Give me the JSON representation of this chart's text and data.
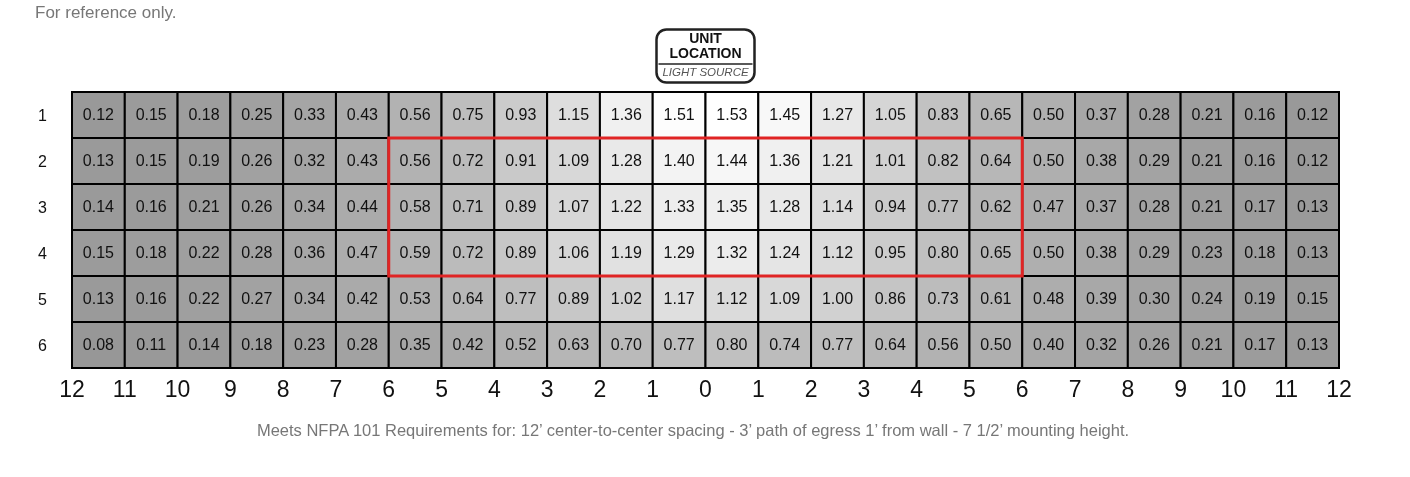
{
  "chart_data": {
    "type": "heatmap",
    "categories": [
      null,
      null,
      null,
      null,
      null,
      null,
      null,
      null,
      null,
      null,
      null,
      null,
      null,
      null,
      null,
      null,
      null,
      null,
      null,
      null,
      null,
      null,
      null,
      null
    ],
    "y_categories": [
      "1",
      "2",
      "3",
      "4",
      "5",
      "6"
    ],
    "cells": [
      [
        0.12,
        0.15,
        0.18,
        0.25,
        0.33,
        0.43,
        0.56,
        0.75,
        0.93,
        1.15,
        1.36,
        1.51,
        1.53,
        1.45,
        1.27,
        1.05,
        0.83,
        0.65,
        0.5,
        0.37,
        0.28,
        0.21,
        0.16,
        0.12
      ],
      [
        0.13,
        0.15,
        0.19,
        0.26,
        0.32,
        0.43,
        0.56,
        0.72,
        0.91,
        1.09,
        1.28,
        1.4,
        1.44,
        1.36,
        1.21,
        1.01,
        0.82,
        0.64,
        0.5,
        0.38,
        0.29,
        0.21,
        0.16,
        0.12
      ],
      [
        0.14,
        0.16,
        0.21,
        0.26,
        0.34,
        0.44,
        0.58,
        0.71,
        0.89,
        1.07,
        1.22,
        1.33,
        1.35,
        1.28,
        1.14,
        0.94,
        0.77,
        0.62,
        0.47,
        0.37,
        0.28,
        0.21,
        0.17,
        0.13
      ],
      [
        0.15,
        0.18,
        0.22,
        0.28,
        0.36,
        0.47,
        0.59,
        0.72,
        0.89,
        1.06,
        1.19,
        1.29,
        1.32,
        1.24,
        1.12,
        0.95,
        0.8,
        0.65,
        0.5,
        0.38,
        0.29,
        0.23,
        0.18,
        0.13
      ],
      [
        0.13,
        0.16,
        0.22,
        0.27,
        0.34,
        0.42,
        0.53,
        0.64,
        0.77,
        0.89,
        1.02,
        1.17,
        1.12,
        1.09,
        1.0,
        0.86,
        0.73,
        0.61,
        0.48,
        0.39,
        0.3,
        0.24,
        0.19,
        0.15
      ],
      [
        0.08,
        0.11,
        0.14,
        0.18,
        0.23,
        0.28,
        0.35,
        0.42,
        0.52,
        0.63,
        0.7,
        0.77,
        0.8,
        0.74,
        0.77,
        0.64,
        0.56,
        0.5,
        0.4,
        0.32,
        0.26,
        0.21,
        0.17,
        0.13
      ]
    ],
    "cell_labels": [
      [
        "0.12",
        "0.15",
        "0.18",
        "0.25",
        "0.33",
        "0.43",
        "0.56",
        "0.75",
        "0.93",
        "1.15",
        "1.36",
        "1.51",
        "1.53",
        "1.45",
        "1.27",
        "1.05",
        "0.83",
        "0.65",
        "0.50",
        "0.37",
        "0.28",
        "0.21",
        "0.16",
        "0.12"
      ],
      [
        "0.13",
        "0.15",
        "0.19",
        "0.26",
        "0.32",
        "0.43",
        "0.56",
        "0.72",
        "0.91",
        "1.09",
        "1.28",
        "1.40",
        "1.44",
        "1.36",
        "1.21",
        "1.01",
        "0.82",
        "0.64",
        "0.50",
        "0.38",
        "0.29",
        "0.21",
        "0.16",
        "0.12"
      ],
      [
        "0.14",
        "0.16",
        "0.21",
        "0.26",
        "0.34",
        "0.44",
        "0.58",
        "0.71",
        "0.89",
        "1.07",
        "1.22",
        "1.33",
        "1.35",
        "1.28",
        "1.14",
        "0.94",
        "0.77",
        "0.62",
        "0.47",
        "0.37",
        "0.28",
        "0.21",
        "0.17",
        "0.13"
      ],
      [
        "0.15",
        "0.18",
        "0.22",
        "0.28",
        "0.36",
        "0.47",
        "0.59",
        "0.72",
        "0.89",
        "1.06",
        "1.19",
        "1.29",
        "1.32",
        "1.24",
        "1.12",
        "0.95",
        "0.80",
        "0.65",
        "0.50",
        "0.38",
        "0.29",
        "0.23",
        "0.18",
        "0.13"
      ],
      [
        "0.13",
        "0.16",
        "0.22",
        "0.27",
        "0.34",
        "0.42",
        "0.53",
        "0.64",
        "0.77",
        "0.89",
        "1.02",
        "1.17",
        "1.12",
        "1.09",
        "1.00",
        "0.86",
        "0.73",
        "0.61",
        "0.48",
        "0.39",
        "0.30",
        "0.24",
        "0.19",
        "0.15"
      ],
      [
        "0.08",
        "0.11",
        "0.14",
        "0.18",
        "0.23",
        "0.28",
        "0.35",
        "0.42",
        "0.52",
        "0.63",
        "0.70",
        "0.77",
        "0.80",
        "0.74",
        "0.77",
        "0.64",
        "0.56",
        "0.50",
        "0.40",
        "0.32",
        "0.26",
        "0.21",
        "0.17",
        "0.13"
      ]
    ],
    "colors": [
      "#979797",
      "#c0c0c0",
      "#ffffff"
    ],
    "annotations": [
      "For reference only.",
      "UNIT LOCATION",
      "LIGHT SOURCE",
      "12 11 10 9 8 7 6 5 4 3 2 1 0 1 2 3 4 5 6 7 8 9 10 11 12",
      "Meets NFPA 101 Requirements for: 12’ center-to-center spacing - 3’ path of egress 1’ from wall - 7 1/2’ mounting height."
    ]
  }
}
